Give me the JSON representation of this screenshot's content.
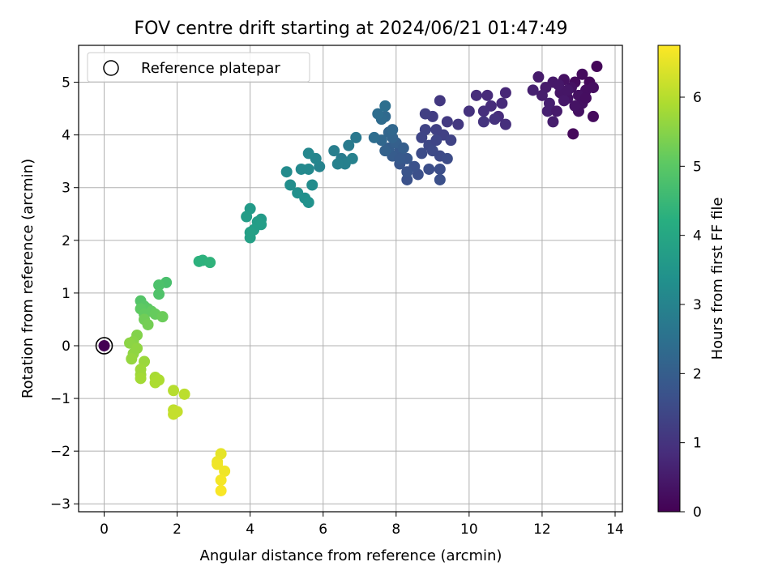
{
  "chart_data": {
    "type": "scatter",
    "title": "FOV centre drift starting at 2024/06/21 01:47:49",
    "xlabel": "Angular distance from reference (arcmin)",
    "ylabel": "Rotation from reference (arcmin)",
    "xlim": [
      -0.7,
      14.2
    ],
    "ylim": [
      -3.15,
      5.7
    ],
    "xticks": [
      0,
      2,
      4,
      6,
      8,
      10,
      12,
      14
    ],
    "yticks": [
      -3,
      -2,
      -1,
      0,
      1,
      2,
      3,
      4,
      5
    ],
    "grid": true,
    "colormap": "viridis",
    "colorbar": {
      "label": "Hours from first FF file",
      "range": [
        0,
        6.75
      ],
      "ticks": [
        0,
        1,
        2,
        3,
        4,
        5,
        6
      ]
    },
    "legend": {
      "placement": "top-left",
      "entries": [
        "Reference platepar"
      ]
    },
    "reference_point": {
      "x": 0,
      "y": 0
    },
    "series": [
      {
        "points": [
          [
            0,
            0,
            0.0
          ],
          [
            13.5,
            5.3,
            0.1
          ],
          [
            13.3,
            5.0,
            0.15
          ],
          [
            13.1,
            5.15,
            0.2
          ],
          [
            12.9,
            5.0,
            0.2
          ],
          [
            13.2,
            4.85,
            0.25
          ],
          [
            13.4,
            4.9,
            0.25
          ],
          [
            12.8,
            4.9,
            0.3
          ],
          [
            12.6,
            5.05,
            0.3
          ],
          [
            13.0,
            4.75,
            0.3
          ],
          [
            12.7,
            4.7,
            0.35
          ],
          [
            13.4,
            4.35,
            0.2
          ],
          [
            12.85,
            4.02,
            0.15
          ],
          [
            13.0,
            4.45,
            0.3
          ],
          [
            12.5,
            4.8,
            0.4
          ],
          [
            12.3,
            5.0,
            0.45
          ],
          [
            12.1,
            4.9,
            0.5
          ],
          [
            11.9,
            5.1,
            0.5
          ],
          [
            12.0,
            4.75,
            0.55
          ],
          [
            12.2,
            4.6,
            0.6
          ],
          [
            12.3,
            4.25,
            0.55
          ],
          [
            12.15,
            4.45,
            0.6
          ],
          [
            11.75,
            4.85,
            0.6
          ],
          [
            12.6,
            4.65,
            0.45
          ],
          [
            12.4,
            4.45,
            0.5
          ],
          [
            13.1,
            4.6,
            0.3
          ],
          [
            12.9,
            4.55,
            0.35
          ],
          [
            12.7,
            4.85,
            0.4
          ],
          [
            13.2,
            4.7,
            0.25
          ],
          [
            12.45,
            4.95,
            0.45
          ],
          [
            11.0,
            4.8,
            0.75
          ],
          [
            10.9,
            4.6,
            0.8
          ],
          [
            10.8,
            4.35,
            0.85
          ],
          [
            11.0,
            4.2,
            0.9
          ],
          [
            10.5,
            4.75,
            0.8
          ],
          [
            10.6,
            4.55,
            0.85
          ],
          [
            10.4,
            4.45,
            0.9
          ],
          [
            10.2,
            4.75,
            0.85
          ],
          [
            10.0,
            4.45,
            0.95
          ],
          [
            10.4,
            4.25,
            1.0
          ],
          [
            10.7,
            4.3,
            0.95
          ],
          [
            9.7,
            4.2,
            1.1
          ],
          [
            9.2,
            4.65,
            1.1
          ],
          [
            9.4,
            4.25,
            1.15
          ],
          [
            9.0,
            4.35,
            1.2
          ],
          [
            8.8,
            4.4,
            1.25
          ],
          [
            9.3,
            4.0,
            1.3
          ],
          [
            9.1,
            4.1,
            1.3
          ],
          [
            8.8,
            4.1,
            1.35
          ],
          [
            9.5,
            3.9,
            1.35
          ],
          [
            8.9,
            3.8,
            1.45
          ],
          [
            9.0,
            3.7,
            1.5
          ],
          [
            9.2,
            3.6,
            1.5
          ],
          [
            8.7,
            3.65,
            1.55
          ],
          [
            9.4,
            3.55,
            1.55
          ],
          [
            9.2,
            3.35,
            1.6
          ],
          [
            9.2,
            3.15,
            1.65
          ],
          [
            8.9,
            3.35,
            1.6
          ],
          [
            8.6,
            3.25,
            1.65
          ],
          [
            8.3,
            3.15,
            1.7
          ],
          [
            8.5,
            3.4,
            1.7
          ],
          [
            8.7,
            3.95,
            1.4
          ],
          [
            9.1,
            3.9,
            1.4
          ],
          [
            8.3,
            3.3,
            1.75
          ],
          [
            8.1,
            3.45,
            1.8
          ],
          [
            8.3,
            3.55,
            1.85
          ],
          [
            8.1,
            3.7,
            1.9
          ],
          [
            7.9,
            3.6,
            1.95
          ],
          [
            7.8,
            3.75,
            2.0
          ],
          [
            8.0,
            3.85,
            2.05
          ],
          [
            7.7,
            3.7,
            2.1
          ],
          [
            7.9,
            3.95,
            2.15
          ],
          [
            7.8,
            4.05,
            2.2
          ],
          [
            7.6,
            3.9,
            2.25
          ],
          [
            7.9,
            4.1,
            2.25
          ],
          [
            7.7,
            4.35,
            2.3
          ],
          [
            7.6,
            4.3,
            2.35
          ],
          [
            7.5,
            4.4,
            2.4
          ],
          [
            7.7,
            4.55,
            2.45
          ],
          [
            7.4,
            3.95,
            2.4
          ],
          [
            8.2,
            3.75,
            2.0
          ],
          [
            8.1,
            3.55,
            1.9
          ],
          [
            6.9,
            3.95,
            2.7
          ],
          [
            6.7,
            3.8,
            2.75
          ],
          [
            6.5,
            3.55,
            2.8
          ],
          [
            6.3,
            3.7,
            2.85
          ],
          [
            6.6,
            3.45,
            2.9
          ],
          [
            6.4,
            3.45,
            2.95
          ],
          [
            6.8,
            3.55,
            2.95
          ],
          [
            5.9,
            3.4,
            3.0
          ],
          [
            5.8,
            3.55,
            3.05
          ],
          [
            5.6,
            3.65,
            3.1
          ],
          [
            5.6,
            3.35,
            3.15
          ],
          [
            5.4,
            3.35,
            3.15
          ],
          [
            5.0,
            3.3,
            3.2
          ],
          [
            5.7,
            3.05,
            3.25
          ],
          [
            5.1,
            3.05,
            3.3
          ],
          [
            5.3,
            2.9,
            3.35
          ],
          [
            5.5,
            2.8,
            3.35
          ],
          [
            5.6,
            2.72,
            3.4
          ],
          [
            4.3,
            2.4,
            3.65
          ],
          [
            4.0,
            2.6,
            3.65
          ],
          [
            4.2,
            2.35,
            3.7
          ],
          [
            3.9,
            2.45,
            3.7
          ],
          [
            4.3,
            2.3,
            3.75
          ],
          [
            4.1,
            2.2,
            3.75
          ],
          [
            4.0,
            2.15,
            3.8
          ],
          [
            4.0,
            2.05,
            3.8
          ],
          [
            2.6,
            1.6,
            4.3
          ],
          [
            2.7,
            1.62,
            4.3
          ],
          [
            2.9,
            1.58,
            4.35
          ],
          [
            1.7,
            1.2,
            4.75
          ],
          [
            1.5,
            1.15,
            4.8
          ],
          [
            1.5,
            0.98,
            4.85
          ],
          [
            1.0,
            0.85,
            4.9
          ],
          [
            1.1,
            0.75,
            4.95
          ],
          [
            1.2,
            0.7,
            5.0
          ],
          [
            1.0,
            0.7,
            5.05
          ],
          [
            1.3,
            0.65,
            5.1
          ],
          [
            1.1,
            0.6,
            5.1
          ],
          [
            1.4,
            0.6,
            5.15
          ],
          [
            1.6,
            0.55,
            5.2
          ],
          [
            1.1,
            0.5,
            5.25
          ],
          [
            1.2,
            0.4,
            5.3
          ],
          [
            0.9,
            0.2,
            5.45
          ],
          [
            0.8,
            0.08,
            5.5
          ],
          [
            0.7,
            0.05,
            5.55
          ],
          [
            0.9,
            -0.05,
            5.6
          ],
          [
            0.8,
            -0.15,
            5.6
          ],
          [
            0.75,
            -0.25,
            5.65
          ],
          [
            1.1,
            -0.3,
            5.7
          ],
          [
            1.0,
            -0.45,
            5.75
          ],
          [
            1.0,
            -0.55,
            5.75
          ],
          [
            1.0,
            -0.62,
            5.8
          ],
          [
            1.4,
            -0.6,
            5.85
          ],
          [
            1.5,
            -0.65,
            5.9
          ],
          [
            1.4,
            -0.7,
            5.9
          ],
          [
            1.9,
            -0.85,
            6.0
          ],
          [
            2.2,
            -0.92,
            6.05
          ],
          [
            1.9,
            -1.22,
            6.1
          ],
          [
            2.0,
            -1.25,
            6.15
          ],
          [
            1.9,
            -1.3,
            6.15
          ],
          [
            3.2,
            -2.05,
            6.5
          ],
          [
            3.1,
            -2.2,
            6.55
          ],
          [
            3.1,
            -2.25,
            6.6
          ],
          [
            3.3,
            -2.38,
            6.6
          ],
          [
            3.2,
            -2.55,
            6.65
          ],
          [
            3.2,
            -2.75,
            6.7
          ]
        ]
      }
    ]
  }
}
